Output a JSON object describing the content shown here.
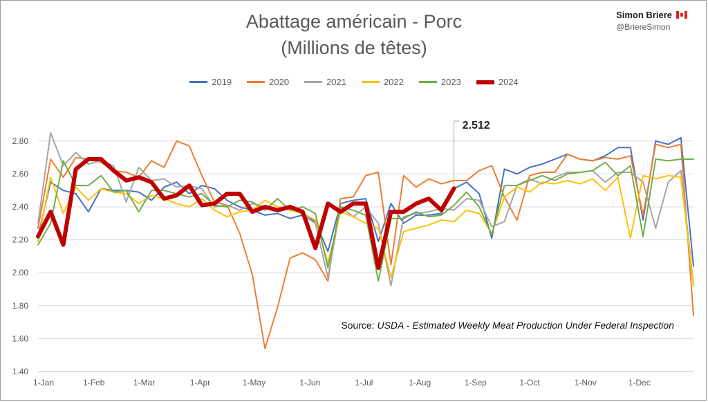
{
  "chart_data": {
    "type": "line",
    "title": "Abattage américain - Porc",
    "subtitle": "(Millions de têtes)",
    "ylim": [
      1.4,
      2.9
    ],
    "yticks": [
      1.4,
      1.6,
      1.8,
      2.0,
      2.2,
      2.4,
      2.6,
      2.8
    ],
    "ytick_labels": [
      "1.40",
      "1.60",
      "1.80",
      "2.00",
      "2.20",
      "2.40",
      "2.60",
      "2.80"
    ],
    "xlim": [
      0,
      52
    ],
    "x_ticks": [
      {
        "label": "1-Jan",
        "week": 0
      },
      {
        "label": "1-Feb",
        "week": 4.43
      },
      {
        "label": "1-Mar",
        "week": 8.43
      },
      {
        "label": "1-Apr",
        "week": 12.86
      },
      {
        "label": "1-May",
        "week": 17.14
      },
      {
        "label": "1-Jun",
        "week": 21.57
      },
      {
        "label": "1-Jul",
        "week": 25.86
      },
      {
        "label": "1-Aug",
        "week": 30.29
      },
      {
        "label": "1-Sep",
        "week": 34.71
      },
      {
        "label": "1-Oct",
        "week": 39.0
      },
      {
        "label": "1-Nov",
        "week": 43.43
      },
      {
        "label": "1-Dec",
        "week": 47.71
      }
    ],
    "grid": true,
    "legend_position": "top",
    "series": [
      {
        "name": "2019",
        "color": "#4472C4",
        "width": 2,
        "values": [
          2.22,
          2.55,
          2.5,
          2.48,
          2.37,
          2.51,
          2.5,
          2.5,
          2.49,
          2.44,
          2.52,
          2.55,
          2.48,
          2.53,
          2.51,
          2.44,
          2.4,
          2.38,
          2.35,
          2.36,
          2.33,
          2.35,
          2.31,
          2.13,
          2.42,
          2.44,
          2.45,
          2.19,
          2.42,
          2.3,
          2.35,
          2.35,
          2.36,
          2.51,
          2.55,
          2.48,
          2.21,
          2.63,
          2.6,
          2.64,
          2.66,
          2.69,
          2.72,
          2.69,
          2.68,
          2.71,
          2.76,
          2.76,
          2.32,
          2.8,
          2.78,
          2.82,
          2.04
        ]
      },
      {
        "name": "2020",
        "color": "#ED7D31",
        "width": 2,
        "values": [
          2.27,
          2.69,
          2.58,
          2.7,
          2.69,
          2.67,
          2.62,
          2.61,
          2.58,
          2.68,
          2.64,
          2.8,
          2.77,
          2.59,
          2.43,
          2.41,
          2.24,
          1.99,
          1.54,
          1.79,
          2.09,
          2.12,
          2.08,
          1.95,
          2.45,
          2.46,
          2.59,
          2.61,
          2.05,
          2.59,
          2.52,
          2.57,
          2.54,
          2.56,
          2.56,
          2.62,
          2.65,
          2.46,
          2.32,
          2.59,
          2.61,
          2.61,
          2.72,
          2.69,
          2.68,
          2.7,
          2.69,
          2.71,
          2.35,
          2.78,
          2.76,
          2.78,
          1.74
        ]
      },
      {
        "name": "2021",
        "color": "#A5A5A5",
        "width": 2,
        "values": [
          2.3,
          2.85,
          2.65,
          2.73,
          2.66,
          2.68,
          2.65,
          2.43,
          2.64,
          2.56,
          2.57,
          2.52,
          2.53,
          2.51,
          2.4,
          2.41,
          2.38,
          2.42,
          2.4,
          2.37,
          2.41,
          2.35,
          2.3,
          1.97,
          2.4,
          2.34,
          2.4,
          2.3,
          1.92,
          2.34,
          2.36,
          2.37,
          2.39,
          2.38,
          2.45,
          2.44,
          2.28,
          2.31,
          2.53,
          2.57,
          2.54,
          2.58,
          2.61,
          2.61,
          2.62,
          2.55,
          2.61,
          2.61,
          2.55,
          2.27,
          2.55,
          2.62,
          1.93
        ]
      },
      {
        "name": "2022",
        "color": "#FFC000",
        "width": 2,
        "values": [
          2.19,
          2.58,
          2.36,
          2.52,
          2.44,
          2.51,
          2.49,
          2.48,
          2.42,
          2.47,
          2.45,
          2.42,
          2.4,
          2.45,
          2.38,
          2.34,
          2.37,
          2.38,
          2.44,
          2.4,
          2.38,
          2.36,
          2.32,
          2.06,
          2.37,
          2.34,
          2.3,
          2.27,
          1.97,
          2.25,
          2.27,
          2.29,
          2.32,
          2.31,
          2.38,
          2.36,
          2.24,
          2.46,
          2.52,
          2.49,
          2.55,
          2.54,
          2.56,
          2.54,
          2.57,
          2.5,
          2.58,
          2.21,
          2.59,
          2.57,
          2.59,
          2.58,
          1.92
        ]
      },
      {
        "name": "2023",
        "color": "#70AD47",
        "width": 2,
        "values": [
          2.17,
          2.3,
          2.68,
          2.53,
          2.53,
          2.59,
          2.49,
          2.5,
          2.37,
          2.5,
          2.5,
          2.48,
          2.46,
          2.48,
          2.41,
          2.4,
          2.44,
          2.43,
          2.38,
          2.45,
          2.38,
          2.4,
          2.36,
          2.03,
          2.4,
          2.38,
          2.35,
          1.95,
          2.33,
          2.33,
          2.37,
          2.34,
          2.35,
          2.41,
          2.49,
          2.4,
          2.23,
          2.53,
          2.53,
          2.56,
          2.59,
          2.56,
          2.6,
          2.61,
          2.62,
          2.67,
          2.59,
          2.65,
          2.22,
          2.69,
          2.68,
          2.69,
          2.69
        ]
      },
      {
        "name": "2024",
        "color": "#C00000",
        "width": 6,
        "values": [
          2.22,
          2.37,
          2.17,
          2.63,
          2.69,
          2.69,
          2.62,
          2.56,
          2.58,
          2.55,
          2.45,
          2.47,
          2.53,
          2.41,
          2.42,
          2.48,
          2.48,
          2.37,
          2.4,
          2.38,
          2.4,
          2.37,
          2.15,
          2.42,
          2.37,
          2.42,
          2.42,
          2.03,
          2.37,
          2.37,
          2.42,
          2.45,
          2.38,
          2.512
        ]
      }
    ],
    "annotation": {
      "text": "2.512",
      "series": "2024",
      "week": 33
    }
  },
  "brand": {
    "name": "Simon Briere",
    "handle": "@BriereSimon"
  },
  "source": {
    "prefix": "Source: ",
    "org": "USDA",
    "text": " - Estimated Weekly Meat Production Under Federal Inspection"
  }
}
